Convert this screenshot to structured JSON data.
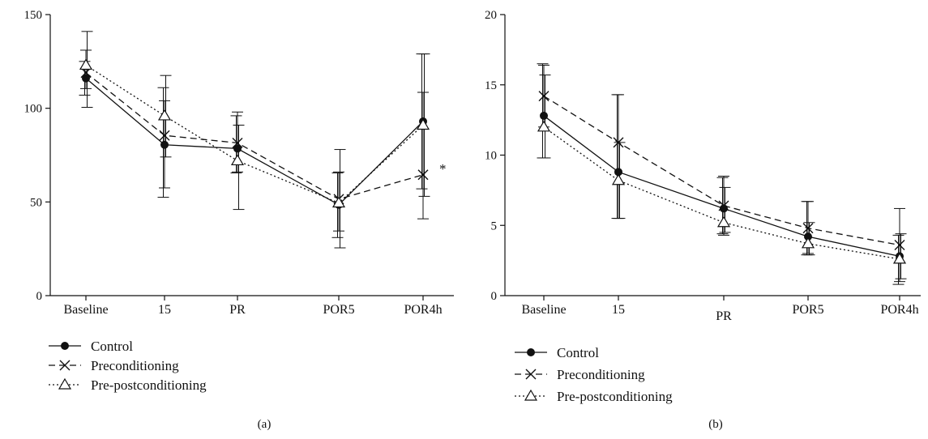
{
  "chart_data": [
    {
      "type": "line",
      "panel_label": "(a)",
      "categories": [
        "Baseline",
        "15",
        "PR",
        "POR5",
        "POR4h"
      ],
      "yticks": [
        0,
        50,
        100,
        150
      ],
      "ylim": [
        0,
        150
      ],
      "series": [
        {
          "name": "Control",
          "values": [
            116,
            80.5,
            78.5,
            48.5,
            93
          ],
          "err_high": [
            125,
            111,
            96,
            65.5,
            129
          ],
          "err_low": [
            107,
            52.5,
            65.5,
            31,
            57
          ]
        },
        {
          "name": "Preconditioning",
          "values": [
            119,
            85.5,
            81.5,
            51.5,
            64.5
          ],
          "err_high": [
            131,
            104,
            98,
            66,
            108.5
          ],
          "err_low": [
            110.5,
            57.5,
            66,
            34.5,
            41
          ]
        },
        {
          "name": "Pre-postconditioning",
          "values": [
            123,
            96,
            72,
            49.5,
            91
          ],
          "err_high": [
            141,
            117.5,
            91,
            78,
            129
          ],
          "err_low": [
            100.5,
            74,
            46,
            25.5,
            53
          ]
        }
      ],
      "annotations": [
        {
          "category": "POR4h",
          "text": "*"
        }
      ]
    },
    {
      "type": "line",
      "panel_label": "(b)",
      "categories": [
        "Baseline",
        "15",
        "PR",
        "POR5",
        "POR4h"
      ],
      "yticks": [
        0,
        5,
        10,
        15,
        20
      ],
      "ylim": [
        0,
        20
      ],
      "series": [
        {
          "name": "Control",
          "values": [
            12.8,
            8.8,
            6.2,
            4.2,
            2.8
          ],
          "err_high": [
            16.5,
            14.3,
            8.4,
            6.7,
            4.3
          ],
          "err_low": [
            9.8,
            5.5,
            4.4,
            2.9,
            0.8
          ]
        },
        {
          "name": "Preconditioning",
          "values": [
            14.2,
            10.9,
            6.4,
            4.8,
            3.6
          ],
          "err_high": [
            16.4,
            14.3,
            8.5,
            6.7,
            6.2
          ],
          "err_low": [
            12.0,
            5.5,
            4.3,
            3.0,
            1.0
          ]
        },
        {
          "name": "Pre-postconditioning",
          "values": [
            12.0,
            8.2,
            5.2,
            3.7,
            2.6
          ],
          "err_high": [
            15.7,
            10.9,
            7.7,
            5.2,
            4.4
          ],
          "err_low": [
            9.8,
            5.5,
            4.5,
            2.9,
            1.2
          ]
        }
      ]
    }
  ],
  "series_styles": [
    {
      "stroke": "#111111",
      "dash": "",
      "marker": "dot"
    },
    {
      "stroke": "#111111",
      "dash": "8,5",
      "marker": "x"
    },
    {
      "stroke": "#111111",
      "dash": "2,3",
      "marker": "triangle"
    }
  ]
}
